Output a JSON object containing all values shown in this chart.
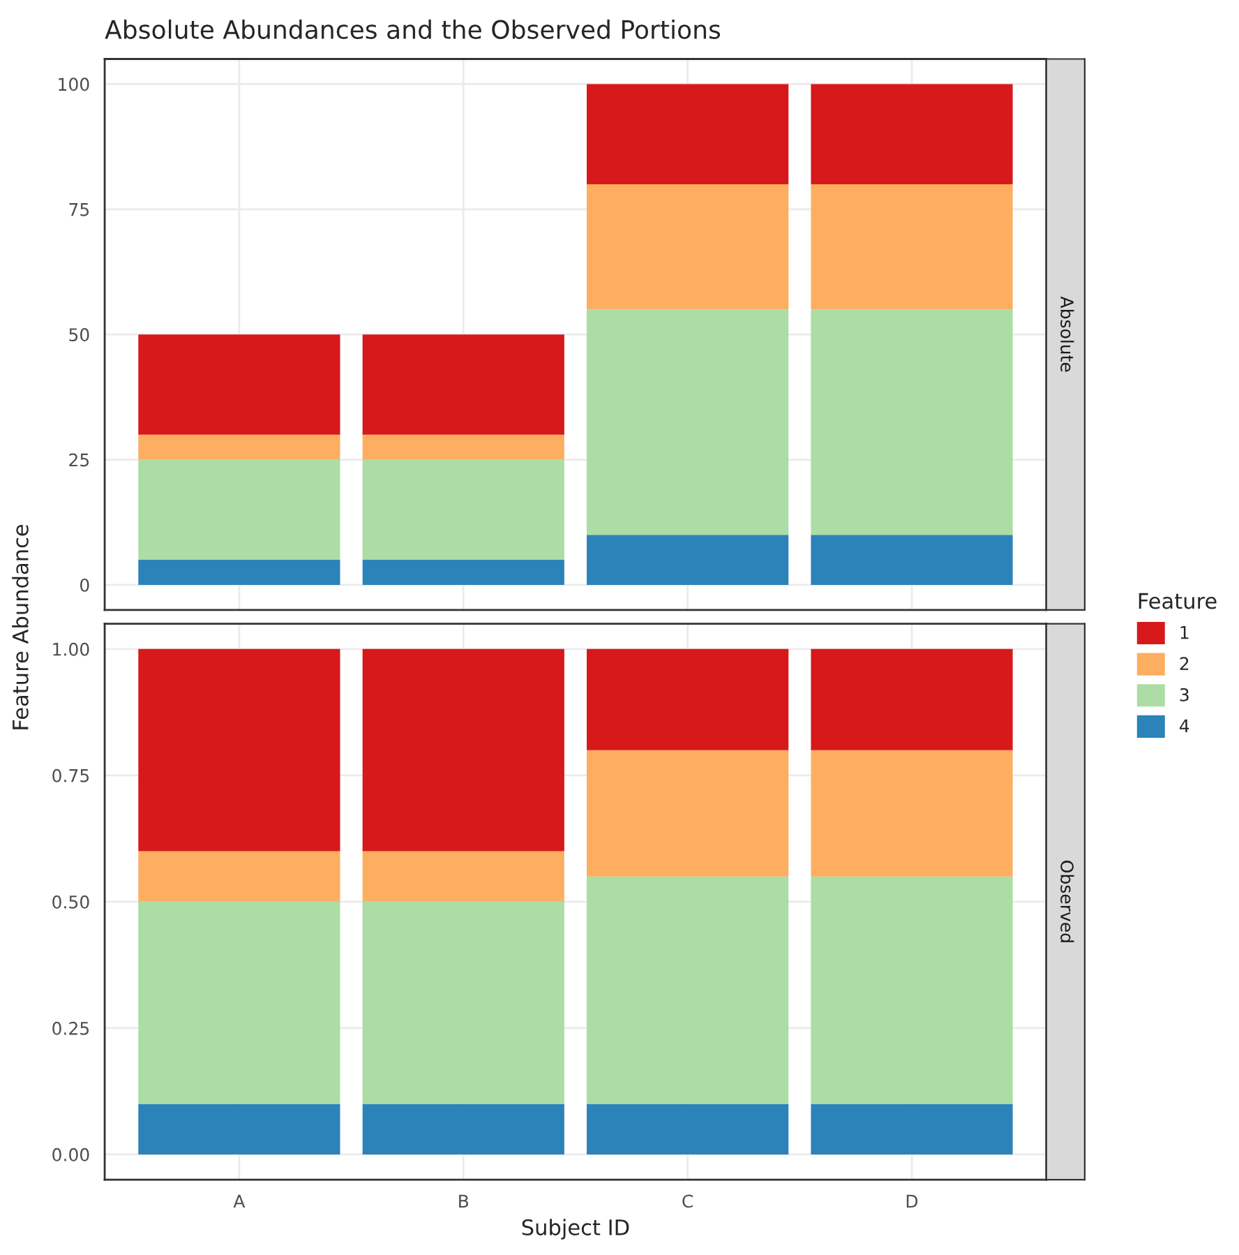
{
  "chart_data": [
    {
      "type": "bar",
      "title": "Absolute Abundances and the Observed Portions",
      "ylabel": "Feature Abundance",
      "legend_title": "Feature",
      "legend": "right",
      "stacked": true,
      "grid": true,
      "tick_labels": "y",
      "categories": [
        null,
        null,
        null,
        null
      ],
      "ylim": [
        -5,
        105
      ],
      "yticks": [
        0,
        25,
        50,
        75,
        100
      ],
      "annotations": [
        "Absolute"
      ],
      "series": [
        {
          "name": "4",
          "color": "#2b83ba",
          "values": [
            5,
            5,
            10,
            10
          ]
        },
        {
          "name": "3",
          "color": "#abdda4",
          "values": [
            20,
            20,
            45,
            45
          ]
        },
        {
          "name": "2",
          "color": "#fdae61",
          "values": [
            5,
            5,
            25,
            25
          ]
        },
        {
          "name": "1",
          "color": "#d7191c",
          "values": [
            20,
            20,
            20,
            20
          ]
        }
      ]
    },
    {
      "type": "bar",
      "xlabel": "Subject ID",
      "stacked": true,
      "grid": true,
      "categories": [
        "A",
        "B",
        "C",
        "D"
      ],
      "ylim": [
        -0.05,
        1.05
      ],
      "yticks": [
        {
          "value": 0,
          "label": "0.00"
        },
        {
          "value": 0.25,
          "label": "0.25"
        },
        {
          "value": 0.5,
          "label": "0.50"
        },
        {
          "value": 0.75,
          "label": "0.75"
        },
        {
          "value": 1,
          "label": "1.00"
        }
      ],
      "annotations": [
        "Observed"
      ],
      "series": [
        {
          "name": "4",
          "color": "#2b83ba",
          "values": [
            0.1,
            0.1,
            0.1,
            0.1
          ]
        },
        {
          "name": "3",
          "color": "#abdda4",
          "values": [
            0.4,
            0.4,
            0.45,
            0.45
          ]
        },
        {
          "name": "2",
          "color": "#fdae61",
          "values": [
            0.1,
            0.1,
            0.25,
            0.25
          ]
        },
        {
          "name": "1",
          "color": "#d7191c",
          "values": [
            0.4,
            0.4,
            0.2,
            0.2
          ]
        }
      ]
    }
  ]
}
